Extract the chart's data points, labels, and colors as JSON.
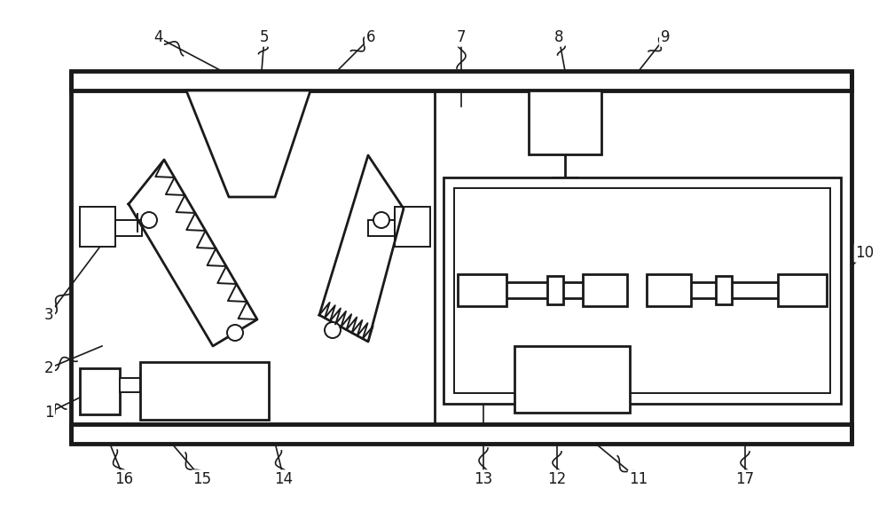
{
  "bg_color": "#ffffff",
  "line_color": "#1a1a1a",
  "lw_thick": 3.5,
  "lw_med": 2.0,
  "lw_thin": 1.4,
  "lw_xtra": 1.0,
  "fig_w": 10.0,
  "fig_h": 5.77,
  "dpi": 100
}
